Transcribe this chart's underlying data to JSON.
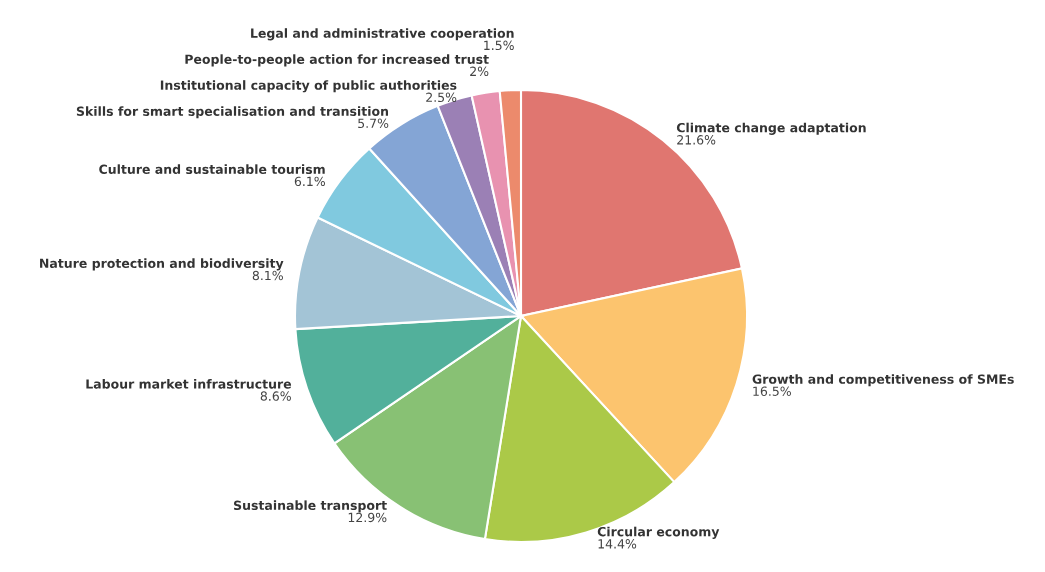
{
  "chart_data": {
    "type": "pie",
    "categories": [
      "Climate change adaptation",
      "Growth and competitiveness of SMEs",
      "Circular economy",
      "Sustainable transport",
      "Labour market infrastructure",
      "Nature protection and biodiversity",
      "Culture and sustainable tourism",
      "Skills for smart specialisation and transition",
      "Institutional capacity of public authorities",
      "People-to-people action for increased trust",
      "Legal and administrative cooperation"
    ],
    "values": [
      21.6,
      16.5,
      14.4,
      12.9,
      8.6,
      8.1,
      6.1,
      5.7,
      2.5,
      2,
      1.5
    ],
    "value_labels": [
      "21.6%",
      "16.5%",
      "14.4%",
      "12.9%",
      "8.6%",
      "8.1%",
      "6.1%",
      "5.7%",
      "2.5%",
      "2%",
      "1.5%"
    ],
    "colors": [
      "#e07670",
      "#fcc46e",
      "#abc948",
      "#88c174",
      "#52b09b",
      "#a3c4d6",
      "#80c9df",
      "#84a5d5",
      "#9b80b5",
      "#e892b0",
      "#ec8a6c"
    ]
  }
}
